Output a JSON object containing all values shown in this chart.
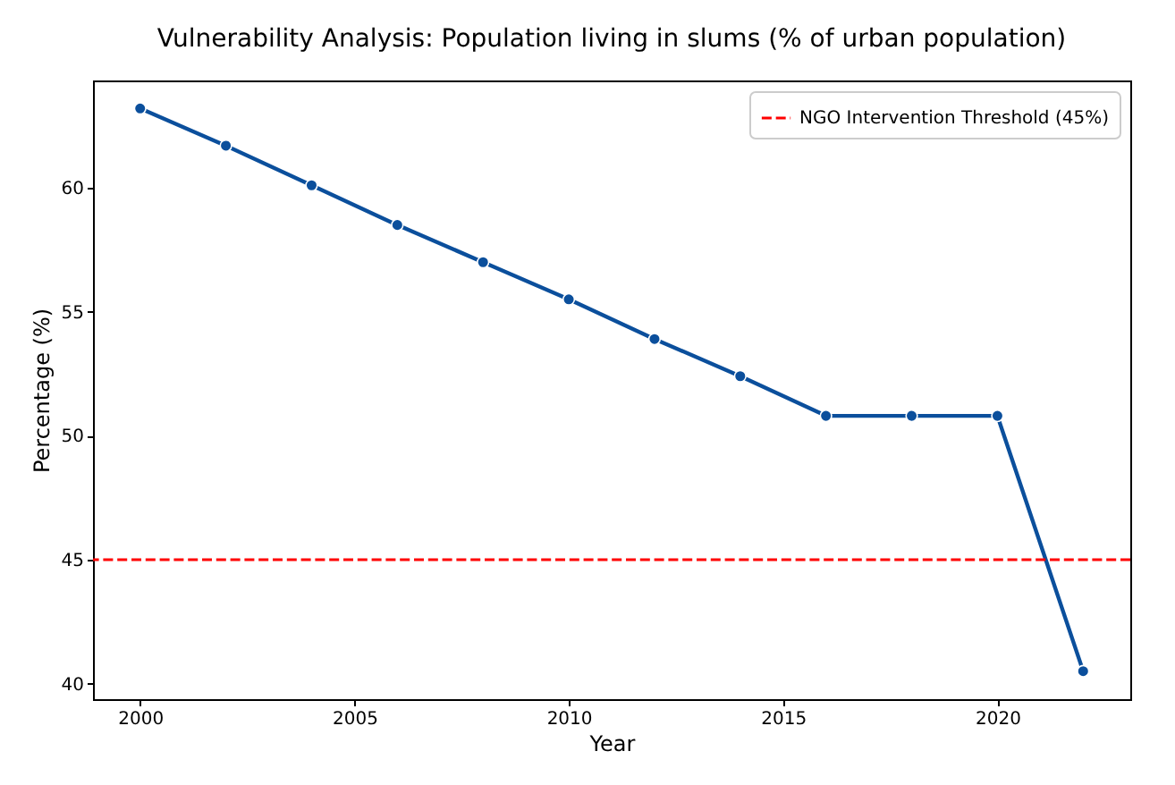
{
  "chart_data": {
    "type": "line",
    "title": "Vulnerability Analysis: Population living in slums (% of urban population)",
    "xlabel": "Year",
    "ylabel": "Percentage (%)",
    "x": [
      2000,
      2002,
      2004,
      2006,
      2008,
      2010,
      2012,
      2014,
      2016,
      2018,
      2020,
      2022
    ],
    "series": [
      {
        "color": "#0b4f9c",
        "values": [
          63.2,
          61.7,
          60.1,
          58.5,
          57.0,
          55.5,
          53.9,
          52.4,
          50.8,
          50.8,
          50.8,
          40.5
        ]
      }
    ],
    "xlim": [
      1998.9,
      2023.1
    ],
    "ylim": [
      39.37,
      64.33
    ],
    "xticks": [
      2000,
      2005,
      2010,
      2015,
      2020
    ],
    "yticks": [
      40,
      45,
      50,
      55,
      60
    ],
    "ref_lines": [
      {
        "axis": "y",
        "value": 45,
        "label": "NGO Intervention Threshold (45%)",
        "color": "#ff0000",
        "line_style": "dashed"
      }
    ],
    "legend": "top right",
    "grid": false,
    "marker": "circle",
    "line_style": "solid"
  }
}
